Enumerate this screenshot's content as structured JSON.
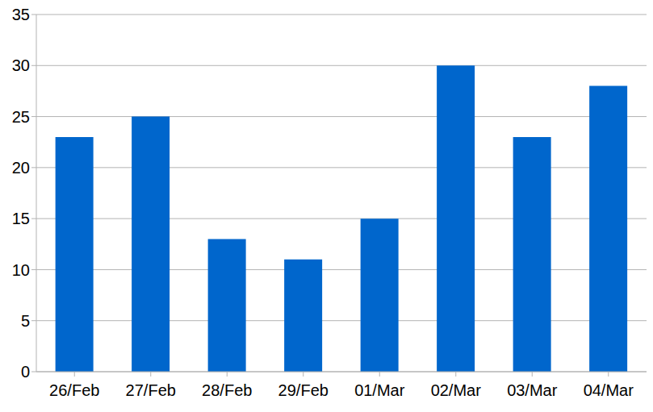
{
  "chart_data": {
    "type": "bar",
    "categories": [
      "26/Feb",
      "27/Feb",
      "28/Feb",
      "29/Feb",
      "01/Mar",
      "02/Mar",
      "03/Mar",
      "04/Mar"
    ],
    "values": [
      23,
      25,
      13,
      11,
      15,
      30,
      23,
      28
    ],
    "color": "#0066cc",
    "ylim": [
      0,
      35
    ],
    "yticks": [
      0,
      5,
      10,
      15,
      20,
      25,
      30,
      35
    ],
    "grid": true
  }
}
